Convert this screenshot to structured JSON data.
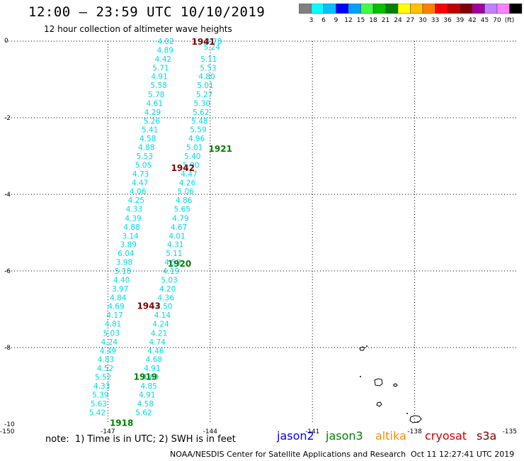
{
  "header": {
    "title": "12:00 – 23:59 UTC 10/10/2019",
    "subtitle": "12 hour collection of altimeter wave heights"
  },
  "colorbar": {
    "colors": [
      "#808080",
      "#00ffff",
      "#00c0ff",
      "#0000ff",
      "#00a0ff",
      "#40ff40",
      "#00c000",
      "#008000",
      "#ffff00",
      "#ffc000",
      "#ff8000",
      "#ff0000",
      "#c00000",
      "#800000",
      "#a000a0",
      "#c080ff",
      "#ff80ff",
      "#000000"
    ],
    "labels": [
      "3",
      "6",
      "9",
      "12",
      "15",
      "18",
      "21",
      "24",
      "27",
      "30",
      "33",
      "36",
      "39",
      "42",
      "45",
      "70",
      "(ft)"
    ]
  },
  "map": {
    "lon_min": -150,
    "lon_max": -135,
    "lat_top": 0,
    "lat_bottom": -10,
    "y_ticks": [
      "0",
      "-2",
      "-4",
      "-6",
      "-8",
      "-10"
    ],
    "x_ticks": [
      "-150",
      "-147",
      "-144",
      "-141",
      "-138",
      "-135"
    ],
    "grid_lons": [
      -147,
      -144,
      -141,
      -138
    ],
    "grid_lats": [
      -2,
      -4,
      -6,
      -8
    ]
  },
  "chart_data": {
    "type": "scatter",
    "title": "12:00 – 23:59 UTC 10/10/2019",
    "xlim": [
      -150,
      -135
    ],
    "ylim": [
      -10,
      0
    ],
    "wave_color": "#00d8e8",
    "track_a": [
      [
        -145.3,
        0.0,
        "4.02"
      ],
      [
        -145.32,
        -0.23,
        "4.89"
      ],
      [
        -145.38,
        -0.46,
        "4.42"
      ],
      [
        -145.45,
        -0.69,
        "5.71"
      ],
      [
        -145.49,
        -0.92,
        "4.91"
      ],
      [
        -145.51,
        -1.15,
        "5.58"
      ],
      [
        -145.58,
        -1.39,
        "5.78"
      ],
      [
        -145.63,
        -1.62,
        "4.61"
      ],
      [
        -145.69,
        -1.85,
        "4.29"
      ],
      [
        -145.71,
        -2.08,
        "5.26"
      ],
      [
        -145.77,
        -2.31,
        "5.41"
      ],
      [
        -145.83,
        -2.54,
        "4.58"
      ],
      [
        -145.87,
        -2.77,
        "4.88"
      ],
      [
        -145.92,
        -3.0,
        "5.53"
      ],
      [
        -145.96,
        -3.23,
        "5.05"
      ],
      [
        -146.04,
        -3.46,
        "4.73"
      ],
      [
        -146.06,
        -3.69,
        "4.47"
      ],
      [
        -146.12,
        -3.92,
        "4.06"
      ],
      [
        -146.17,
        -4.15,
        "4.25"
      ],
      [
        -146.23,
        -4.38,
        "4.33"
      ],
      [
        -146.26,
        -4.62,
        "4.39"
      ],
      [
        -146.3,
        -4.85,
        "4.88"
      ],
      [
        -146.34,
        -5.08,
        "3.14"
      ],
      [
        -146.4,
        -5.31,
        "3.89"
      ],
      [
        -146.47,
        -5.54,
        "6.04"
      ],
      [
        -146.52,
        -5.77,
        "3.98"
      ],
      [
        -146.56,
        -6.0,
        "5.18"
      ],
      [
        -146.6,
        -6.23,
        "4.40"
      ],
      [
        -146.64,
        -6.46,
        "3.97"
      ],
      [
        -146.7,
        -6.69,
        "4.84"
      ],
      [
        -146.76,
        -6.92,
        "4.69"
      ],
      [
        -146.8,
        -7.15,
        "4.17"
      ],
      [
        -146.85,
        -7.38,
        "4.81"
      ],
      [
        -146.9,
        -7.62,
        "5.03"
      ],
      [
        -146.96,
        -7.85,
        "4.24"
      ],
      [
        -147.0,
        -8.08,
        "4.49"
      ],
      [
        -147.06,
        -8.31,
        "4.83"
      ],
      [
        -147.08,
        -8.54,
        "4.52"
      ],
      [
        -147.14,
        -8.77,
        "5.52"
      ],
      [
        -147.18,
        -9.0,
        "4.33"
      ],
      [
        -147.22,
        -9.23,
        "5.39"
      ],
      [
        -147.27,
        -9.46,
        "5.63"
      ],
      [
        -147.31,
        -9.69,
        "5.42"
      ]
    ],
    "track_b": [
      [
        -143.9,
        0.0,
        "4.78"
      ],
      [
        -143.95,
        -0.15,
        "5.24"
      ],
      [
        -144.04,
        -0.46,
        "5.11"
      ],
      [
        -144.06,
        -0.69,
        "5.53"
      ],
      [
        -144.1,
        -0.92,
        "4.80"
      ],
      [
        -144.14,
        -1.15,
        "5.01"
      ],
      [
        -144.17,
        -1.39,
        "5.27"
      ],
      [
        -144.24,
        -1.62,
        "5.30"
      ],
      [
        -144.27,
        -1.85,
        "5.62"
      ],
      [
        -144.31,
        -2.08,
        "5.48"
      ],
      [
        -144.35,
        -2.31,
        "5.59"
      ],
      [
        -144.4,
        -2.54,
        "4.96"
      ],
      [
        -144.46,
        -2.77,
        "5.01"
      ],
      [
        -144.52,
        -3.0,
        "5.40"
      ],
      [
        -144.56,
        -3.23,
        "5.90"
      ],
      [
        -144.62,
        -3.46,
        "4.47"
      ],
      [
        -144.67,
        -3.69,
        "4.26"
      ],
      [
        -144.72,
        -3.92,
        "5.06"
      ],
      [
        -144.77,
        -4.15,
        "4.86"
      ],
      [
        -144.82,
        -4.38,
        "5.65"
      ],
      [
        -144.87,
        -4.62,
        "4.79"
      ],
      [
        -144.92,
        -4.85,
        "4.67"
      ],
      [
        -144.97,
        -5.08,
        "4.01"
      ],
      [
        -145.02,
        -5.31,
        "4.31"
      ],
      [
        -145.06,
        -5.54,
        "5.11"
      ],
      [
        -145.1,
        -5.77,
        "4.58"
      ],
      [
        -145.15,
        -6.0,
        "4.19"
      ],
      [
        -145.2,
        -6.23,
        "5.03"
      ],
      [
        -145.25,
        -6.46,
        "4.20"
      ],
      [
        -145.3,
        -6.69,
        "4.36"
      ],
      [
        -145.35,
        -6.92,
        "4.50"
      ],
      [
        -145.4,
        -7.15,
        "4.14"
      ],
      [
        -145.45,
        -7.38,
        "4.24"
      ],
      [
        -145.5,
        -7.62,
        "4.21"
      ],
      [
        -145.55,
        -7.85,
        "4.74"
      ],
      [
        -145.6,
        -8.08,
        "4.46"
      ],
      [
        -145.65,
        -8.31,
        "4.68"
      ],
      [
        -145.7,
        -8.54,
        "4.91"
      ],
      [
        -145.75,
        -8.77,
        "4.69"
      ],
      [
        -145.8,
        -9.0,
        "4.85"
      ],
      [
        -145.85,
        -9.23,
        "4.91"
      ],
      [
        -145.9,
        -9.46,
        "4.58"
      ],
      [
        -145.95,
        -9.69,
        "5.62"
      ]
    ]
  },
  "time_labels": [
    {
      "text": "1941",
      "lon": -144.2,
      "lat": 0.0,
      "color": "#800000"
    },
    {
      "text": "1942",
      "lon": -144.8,
      "lat": -3.3,
      "color": "#800000"
    },
    {
      "text": "1943",
      "lon": -145.8,
      "lat": -6.9,
      "color": "#800000"
    },
    {
      "text": "1921",
      "lon": -143.7,
      "lat": -2.8,
      "color": "#008000"
    },
    {
      "text": "1920",
      "lon": -144.9,
      "lat": -5.8,
      "color": "#008000"
    },
    {
      "text": "1919",
      "lon": -145.9,
      "lat": -8.75,
      "color": "#008000"
    },
    {
      "text": "1918",
      "lon": -146.6,
      "lat": -9.95,
      "color": "#008000"
    }
  ],
  "footer": {
    "note": "note:  1) Time is in UTC; 2) SWH is in feet",
    "satellites": [
      {
        "name": "jason2",
        "color": "#0000ff"
      },
      {
        "name": "jason3",
        "color": "#008000"
      },
      {
        "name": "altika",
        "color": "#ff8c00"
      },
      {
        "name": "cryosat",
        "color": "#cc0000"
      },
      {
        "name": "s3a",
        "color": "#800000"
      }
    ],
    "credit": "NOAA/NESDIS Center for Satellite Applications and Research",
    "timestamp": "Oct 11 12:27:41 UTC 2019"
  }
}
